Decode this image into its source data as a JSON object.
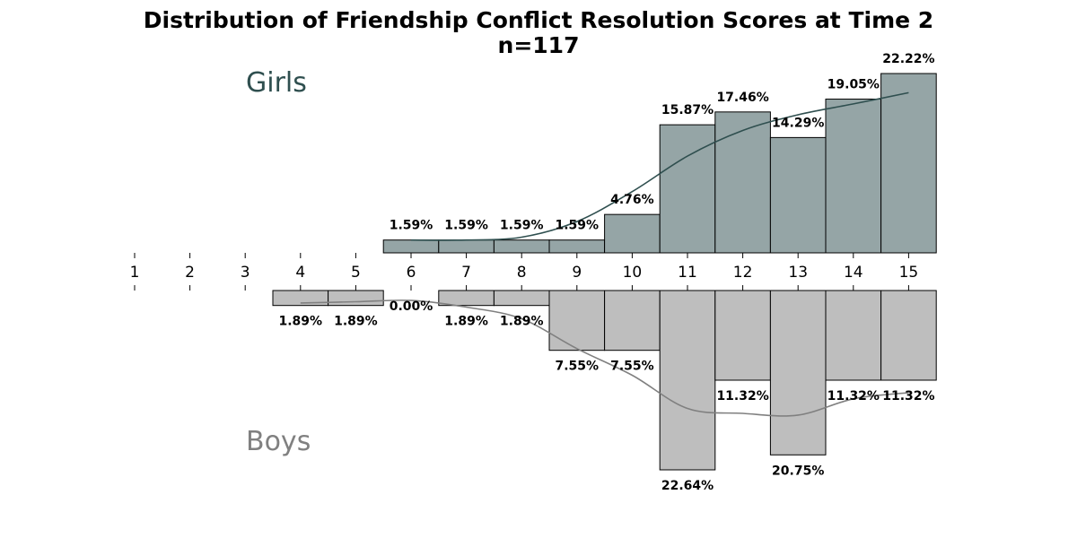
{
  "chart_data": {
    "type": "bar",
    "title": "Distribution of Friendship Conflict Resolution Scores at Time 2",
    "subtitle": "n=117",
    "x_ticks": [
      "1",
      "2",
      "3",
      "4",
      "5",
      "6",
      "7",
      "8",
      "9",
      "10",
      "11",
      "12",
      "13",
      "14",
      "15"
    ],
    "grid": false,
    "series": [
      {
        "name": "Girls",
        "direction": "up",
        "color": "#95a5a6",
        "curve_color": "#2f4f4f",
        "label_color": "#2f4f4f",
        "x": [
          6,
          7,
          8,
          9,
          10,
          11,
          12,
          13,
          14,
          15
        ],
        "values": [
          1.59,
          1.59,
          1.59,
          1.59,
          4.76,
          15.87,
          17.46,
          14.29,
          19.05,
          22.22
        ],
        "labels": [
          "1.59%",
          "1.59%",
          "1.59%",
          "1.59%",
          "4.76%",
          "15.87%",
          "17.46%",
          "14.29%",
          "19.05%",
          "22.22%"
        ]
      },
      {
        "name": "Boys",
        "direction": "down",
        "color": "#bebebe",
        "curve_color": "#808080",
        "label_color": "#808080",
        "x": [
          4,
          5,
          6,
          7,
          8,
          9,
          10,
          11,
          12,
          13,
          14,
          15
        ],
        "values": [
          1.89,
          1.89,
          0.0,
          1.89,
          1.89,
          7.55,
          7.55,
          22.64,
          11.32,
          20.75,
          11.32,
          11.32
        ],
        "labels": [
          "1.89%",
          "1.89%",
          "0.00%",
          "1.89%",
          "1.89%",
          "7.55%",
          "7.55%",
          "22.64%",
          "11.32%",
          "20.75%",
          "11.32%",
          "11.32%"
        ]
      }
    ]
  }
}
